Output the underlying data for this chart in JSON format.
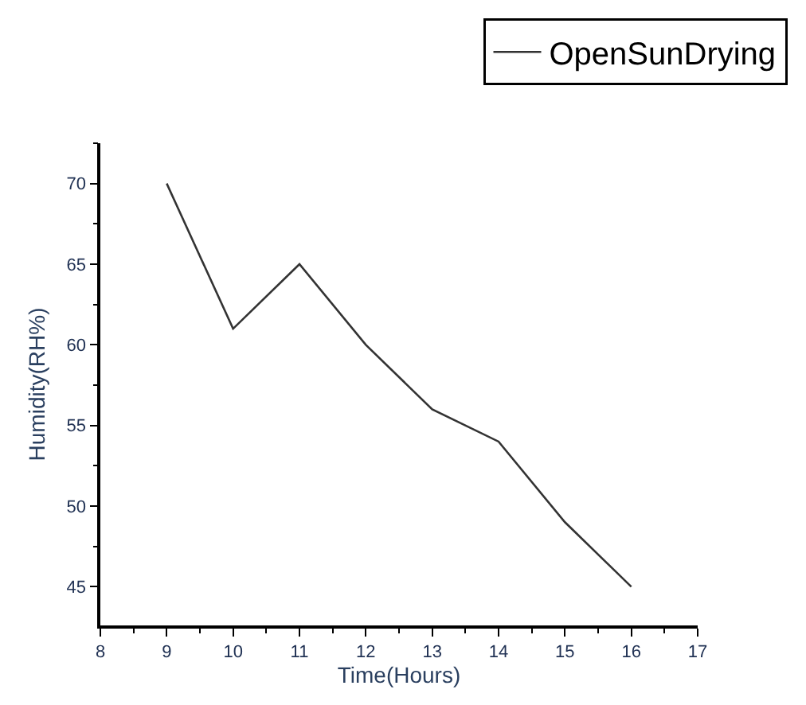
{
  "chart_data": {
    "type": "line",
    "xlabel": "Time(Hours)",
    "ylabel": "Humidity(RH%)",
    "x": [
      9,
      10,
      11,
      12,
      13,
      14,
      15,
      16
    ],
    "series": [
      {
        "name": "OpenSunDrying",
        "color": "#333333",
        "values": [
          70,
          61,
          65,
          60,
          56,
          54,
          49,
          45
        ]
      }
    ],
    "xlim": [
      8,
      17
    ],
    "xticks": [
      8,
      9,
      10,
      11,
      12,
      13,
      14,
      15,
      16,
      17
    ],
    "ylim": [
      42.6,
      72.5
    ],
    "yticks": [
      45,
      50,
      55,
      60,
      65,
      70
    ],
    "legend": "top right",
    "marker": "none",
    "line_style": "solid"
  }
}
